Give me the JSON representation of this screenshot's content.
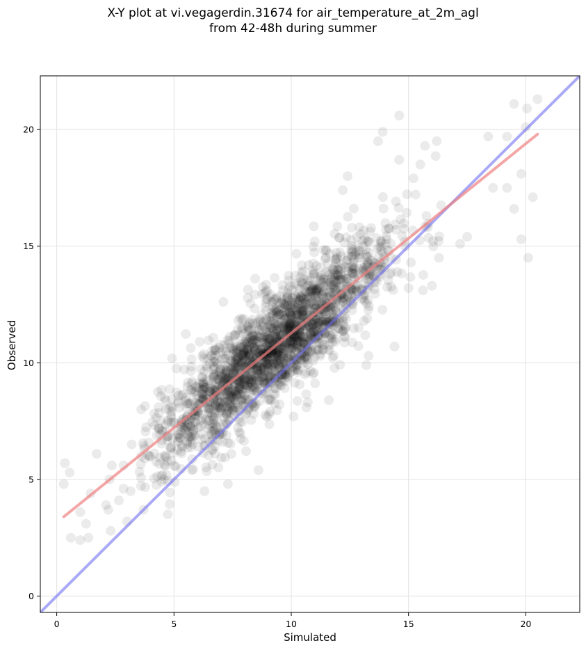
{
  "chart_data": {
    "type": "scatter",
    "title": "X-Y plot at vi.vegagerdin.31674 for air_temperature_at_2m_agl",
    "subtitle": "from 42-48h during summer",
    "xlabel": "Simulated",
    "ylabel": "Observed",
    "xlim": [
      -0.7,
      22.3
    ],
    "ylim": [
      -0.7,
      22.3
    ],
    "xticks": [
      0,
      5,
      10,
      15,
      20
    ],
    "yticks": [
      0,
      5,
      10,
      15,
      20
    ],
    "grid": true,
    "colors": {
      "points": "#000000",
      "fit_line": "#f08080",
      "identity_line": "#7070f0"
    },
    "points_opacity": 0.08,
    "fit_line": {
      "x": [
        0.3,
        20.5
      ],
      "y": [
        3.4,
        19.8
      ]
    },
    "identity_line": {
      "x": [
        -0.7,
        22.3
      ],
      "y": [
        -0.7,
        22.3
      ]
    },
    "outlier_points": [
      [
        0.3,
        4.8
      ],
      [
        0.35,
        5.7
      ],
      [
        0.55,
        5.3
      ],
      [
        0.6,
        2.5
      ],
      [
        1.0,
        2.4
      ],
      [
        1.0,
        3.6
      ],
      [
        1.25,
        3.1
      ],
      [
        1.35,
        2.5
      ],
      [
        1.45,
        4.4
      ],
      [
        1.7,
        6.1
      ],
      [
        2.1,
        3.9
      ],
      [
        2.2,
        3.7
      ],
      [
        2.25,
        5.0
      ],
      [
        2.3,
        2.8
      ],
      [
        2.35,
        5.6
      ],
      [
        2.65,
        4.1
      ],
      [
        2.85,
        4.6
      ],
      [
        2.85,
        5.6
      ],
      [
        3.0,
        3.2
      ],
      [
        3.15,
        4.5
      ],
      [
        3.2,
        6.5
      ],
      [
        3.6,
        6.0
      ],
      [
        3.6,
        8.0
      ],
      [
        3.7,
        3.7
      ],
      [
        4.5,
        5.2
      ],
      [
        6.3,
        4.5
      ],
      [
        7.3,
        4.8
      ],
      [
        8.6,
        5.4
      ],
      [
        10.1,
        7.7
      ],
      [
        11.0,
        15.2
      ],
      [
        11.6,
        8.4
      ],
      [
        12.2,
        17.4
      ],
      [
        12.4,
        18.0
      ],
      [
        13.2,
        9.9
      ],
      [
        13.3,
        10.3
      ],
      [
        13.7,
        19.5
      ],
      [
        13.9,
        19.9
      ],
      [
        14.4,
        10.7
      ],
      [
        14.6,
        20.6
      ],
      [
        14.6,
        18.7
      ],
      [
        15.0,
        13.2
      ],
      [
        15.1,
        14.3
      ],
      [
        15.5,
        18.5
      ],
      [
        15.7,
        19.3
      ],
      [
        16.0,
        13.3
      ],
      [
        16.2,
        19.5
      ],
      [
        16.3,
        14.5
      ],
      [
        17.2,
        15.1
      ],
      [
        17.5,
        15.4
      ],
      [
        18.4,
        19.7
      ],
      [
        18.6,
        17.5
      ],
      [
        19.2,
        17.5
      ],
      [
        19.2,
        19.7
      ],
      [
        19.5,
        21.1
      ],
      [
        19.5,
        16.6
      ],
      [
        19.8,
        18.1
      ],
      [
        19.8,
        15.3
      ],
      [
        20.0,
        20.1
      ],
      [
        20.05,
        20.9
      ],
      [
        20.1,
        14.5
      ],
      [
        20.3,
        17.1
      ],
      [
        20.5,
        21.3
      ]
    ],
    "cloud_model": {
      "n_points": 2200,
      "x_mean": 9.3,
      "x_sd": 2.5,
      "x_range": [
        3.5,
        16.5
      ],
      "slope": 0.81,
      "intercept": 3.15,
      "residual_sd": 1.15
    }
  }
}
